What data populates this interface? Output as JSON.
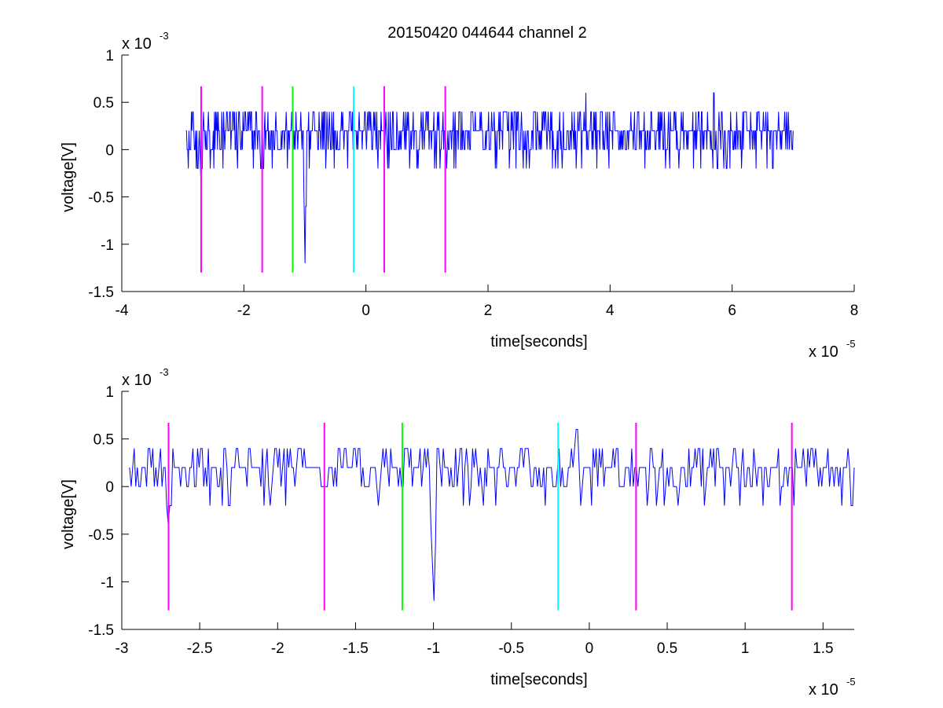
{
  "figure": {
    "title": "20150420 044644 channel 2",
    "background": "#ffffff",
    "axis_color": "#000000"
  },
  "chart_data": [
    {
      "type": "line",
      "xlabel": "time[seconds]",
      "ylabel": "voltage[V]",
      "xlim": [
        -4e-05,
        8e-05
      ],
      "ylim": [
        -0.0015,
        0.001
      ],
      "xticks": [
        -4e-05,
        -2e-05,
        0,
        2e-05,
        4e-05,
        6e-05,
        8e-05
      ],
      "xtick_labels": [
        "-4",
        "-2",
        "0",
        "2",
        "4",
        "6",
        "8"
      ],
      "yticks": [
        -0.0015,
        -0.001,
        -0.0005,
        0,
        0.0005,
        0.001
      ],
      "ytick_labels": [
        "-1.5",
        "-1",
        "-0.5",
        "0",
        "0.5",
        "1"
      ],
      "x_exponent": {
        "base": "x 10",
        "power": "-5"
      },
      "y_exponent": {
        "base": "x 10",
        "power": "-3"
      },
      "grid": false,
      "series": [
        {
          "color": "#0000ff",
          "x_start": -2.95e-05,
          "x_end": 7e-05,
          "baseline": 0.0002,
          "quantum": 0.0002,
          "samples": 1000,
          "spikes": [
            {
              "x": -2.7e-05,
              "y": -0.0004
            },
            {
              "x": -1e-05,
              "y": -0.0012
            },
            {
              "x": -2e-06,
              "y": 0.0006
            },
            {
              "x": 3.6e-05,
              "y": 0.0006
            },
            {
              "x": 5.7e-05,
              "y": 0.0006
            }
          ]
        }
      ],
      "markers": [
        {
          "x": -2.7e-05,
          "color": "#ff00ff"
        },
        {
          "x": -1.7e-05,
          "color": "#ff00ff"
        },
        {
          "x": -1.2e-05,
          "color": "#00ff00"
        },
        {
          "x": -2e-06,
          "color": "#00ffff"
        },
        {
          "x": 3e-06,
          "color": "#ff00ff"
        },
        {
          "x": 1.3e-05,
          "color": "#ff00ff"
        }
      ],
      "marker_range": [
        -0.0013,
        0.00067
      ]
    },
    {
      "type": "line",
      "xlabel": "time[seconds]",
      "ylabel": "voltage[V]",
      "xlim": [
        -3e-05,
        1.7e-05
      ],
      "ylim": [
        -0.0015,
        0.001
      ],
      "xticks": [
        -3e-05,
        -2.5e-05,
        -2e-05,
        -1.5e-05,
        -1e-05,
        -5e-06,
        0,
        5e-06,
        1e-05,
        1.5e-05
      ],
      "xtick_labels": [
        "-3",
        "-2.5",
        "-2",
        "-1.5",
        "-1",
        "-0.5",
        "0",
        "0.5",
        "1",
        "1.5"
      ],
      "yticks": [
        -0.0015,
        -0.001,
        -0.0005,
        0,
        0.0005,
        0.001
      ],
      "ytick_labels": [
        "-1.5",
        "-1",
        "-0.5",
        "0",
        "0.5",
        "1"
      ],
      "x_exponent": {
        "base": "x 10",
        "power": "-5"
      },
      "y_exponent": {
        "base": "x 10",
        "power": "-3"
      },
      "grid": false,
      "series": [
        {
          "color": "#0000ff",
          "x_start": -2.95e-05,
          "x_end": 1.7e-05,
          "baseline": 0.0002,
          "quantum": 0.0002,
          "samples": 470,
          "spikes": [
            {
              "x": -2.7e-05,
              "y": -0.0004
            },
            {
              "x": -1e-05,
              "y": -0.0012
            },
            {
              "x": -8e-07,
              "y": 0.0006
            }
          ]
        }
      ],
      "markers": [
        {
          "x": -2.7e-05,
          "color": "#ff00ff"
        },
        {
          "x": -1.7e-05,
          "color": "#ff00ff"
        },
        {
          "x": -1.2e-05,
          "color": "#00ff00"
        },
        {
          "x": -2e-06,
          "color": "#00ffff"
        },
        {
          "x": 3e-06,
          "color": "#ff00ff"
        },
        {
          "x": 1.3e-05,
          "color": "#ff00ff"
        }
      ],
      "marker_range": [
        -0.0013,
        0.00067
      ]
    }
  ]
}
